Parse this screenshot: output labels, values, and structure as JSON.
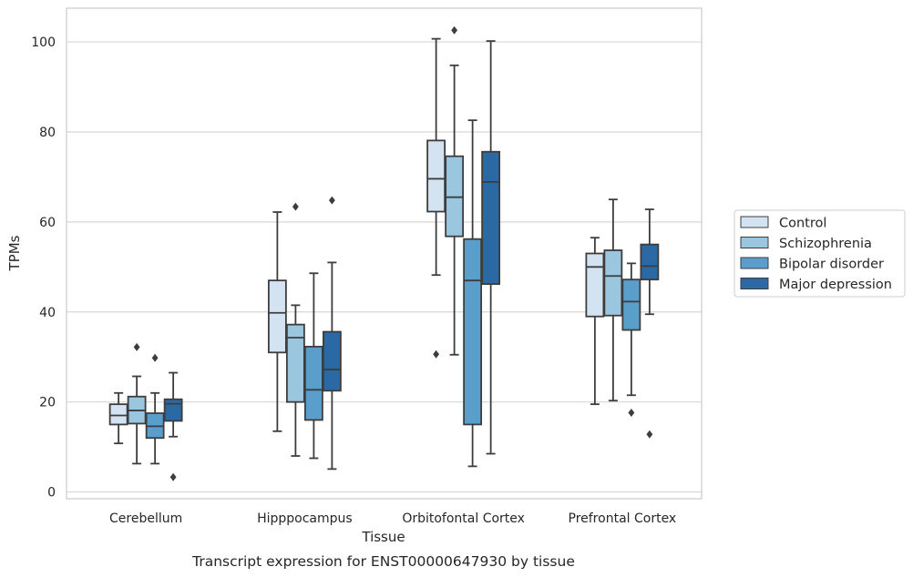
{
  "caption": "Transcript expression for ENST00000647930 by tissue",
  "chart_data": {
    "type": "box",
    "xlabel": "Tissue",
    "ylabel": "TPMs",
    "ylim": [
      -1.5,
      107.5
    ],
    "yticks": [
      0,
      20,
      40,
      60,
      80,
      100
    ],
    "grid": "horizontal",
    "legend_position": "right",
    "categories": [
      "Cerebellum",
      "Hipppocampus",
      "Orbitofontal Cortex",
      "Prefrontal Cortex"
    ],
    "series": [
      {
        "name": "Control",
        "color": "#d4e3f2",
        "boxes": [
          {
            "whisker_low": 10.8,
            "q1": 15,
            "median": 17,
            "q3": 19.5,
            "whisker_high": 22,
            "outliers": []
          },
          {
            "whisker_low": 13.5,
            "q1": 31,
            "median": 39.8,
            "q3": 47,
            "whisker_high": 62.2,
            "outliers": []
          },
          {
            "whisker_low": 48.2,
            "q1": 62.3,
            "median": 69.6,
            "q3": 78.1,
            "whisker_high": 100.7,
            "outliers": [
              30.6
            ]
          },
          {
            "whisker_low": 19.5,
            "q1": 39,
            "median": 50,
            "q3": 53,
            "whisker_high": 56.5,
            "outliers": []
          }
        ]
      },
      {
        "name": "Schizophrenia",
        "color": "#9ac6e0",
        "boxes": [
          {
            "whisker_low": 6.3,
            "q1": 15.2,
            "median": 18.1,
            "q3": 21.2,
            "whisker_high": 25.7,
            "outliers": [
              32.2
            ]
          },
          {
            "whisker_low": 8,
            "q1": 20,
            "median": 34.3,
            "q3": 37.2,
            "whisker_high": 41.5,
            "outliers": [
              63.4
            ]
          },
          {
            "whisker_low": 30.5,
            "q1": 56.8,
            "median": 65.5,
            "q3": 74.6,
            "whisker_high": 94.8,
            "outliers": [
              102.6
            ]
          },
          {
            "whisker_low": 20.3,
            "q1": 39.2,
            "median": 48,
            "q3": 53.7,
            "whisker_high": 65,
            "outliers": []
          }
        ]
      },
      {
        "name": "Bipolar disorder",
        "color": "#5a9fcb",
        "boxes": [
          {
            "whisker_low": 6.3,
            "q1": 12,
            "median": 14.6,
            "q3": 17.5,
            "whisker_high": 22,
            "outliers": [
              29.8
            ]
          },
          {
            "whisker_low": 7.5,
            "q1": 16,
            "median": 22.7,
            "q3": 32.3,
            "whisker_high": 48.6,
            "outliers": []
          },
          {
            "whisker_low": 5.7,
            "q1": 15,
            "median": 47,
            "q3": 56.2,
            "whisker_high": 82.6,
            "outliers": []
          },
          {
            "whisker_low": 21.5,
            "q1": 36,
            "median": 42.3,
            "q3": 47.2,
            "whisker_high": 50.8,
            "outliers": [
              17.6
            ]
          }
        ]
      },
      {
        "name": "Major depression",
        "color": "#2b69a5",
        "boxes": [
          {
            "whisker_low": 12.3,
            "q1": 15.8,
            "median": 19.6,
            "q3": 20.6,
            "whisker_high": 26.5,
            "outliers": [
              3.3
            ]
          },
          {
            "whisker_low": 5.1,
            "q1": 22.5,
            "median": 27.2,
            "q3": 35.6,
            "whisker_high": 51,
            "outliers": [
              64.8
            ]
          },
          {
            "whisker_low": 8.5,
            "q1": 46.2,
            "median": 68.9,
            "q3": 75.6,
            "whisker_high": 100.2,
            "outliers": []
          },
          {
            "whisker_low": 39.5,
            "q1": 47.2,
            "median": 50.2,
            "q3": 55,
            "whisker_high": 62.8,
            "outliers": [
              12.8
            ]
          }
        ]
      }
    ]
  }
}
